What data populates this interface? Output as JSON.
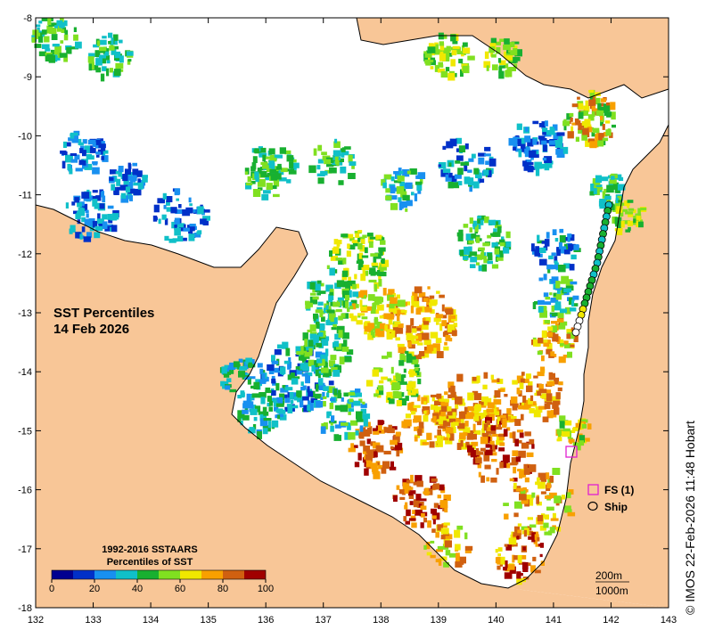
{
  "map": {
    "title_line1": "SST Percentiles",
    "title_line2": "14 Feb 2026",
    "credit": "© IMOS 22-Feb-2026 11:48 Hobart",
    "x_ticks": [
      "132",
      "133",
      "134",
      "135",
      "136",
      "137",
      "138",
      "139",
      "140",
      "141",
      "142",
      "143"
    ],
    "y_ticks": [
      "-8",
      "-9",
      "-10",
      "-11",
      "-12",
      "-13",
      "-14",
      "-15",
      "-16",
      "-17",
      "-18"
    ],
    "colors": {
      "land": "#f8c697",
      "sea": "#ffffff",
      "fs_marker": "#e020d0"
    }
  },
  "colorbar": {
    "title_line1": "1992-2016 SSTAARS",
    "title_line2": "Percentiles of SST",
    "tick_labels": [
      "0",
      "20",
      "40",
      "60",
      "80",
      "100"
    ],
    "colors": [
      "#000090",
      "#0030c8",
      "#1890f0",
      "#10c0c8",
      "#18b030",
      "#80e020",
      "#f0e800",
      "#f8a000",
      "#d06010",
      "#a00000"
    ]
  },
  "legend": {
    "fs_label": "FS (1)",
    "ship_label": "Ship",
    "contour_200": "200m",
    "contour_1000": "1000m"
  }
}
